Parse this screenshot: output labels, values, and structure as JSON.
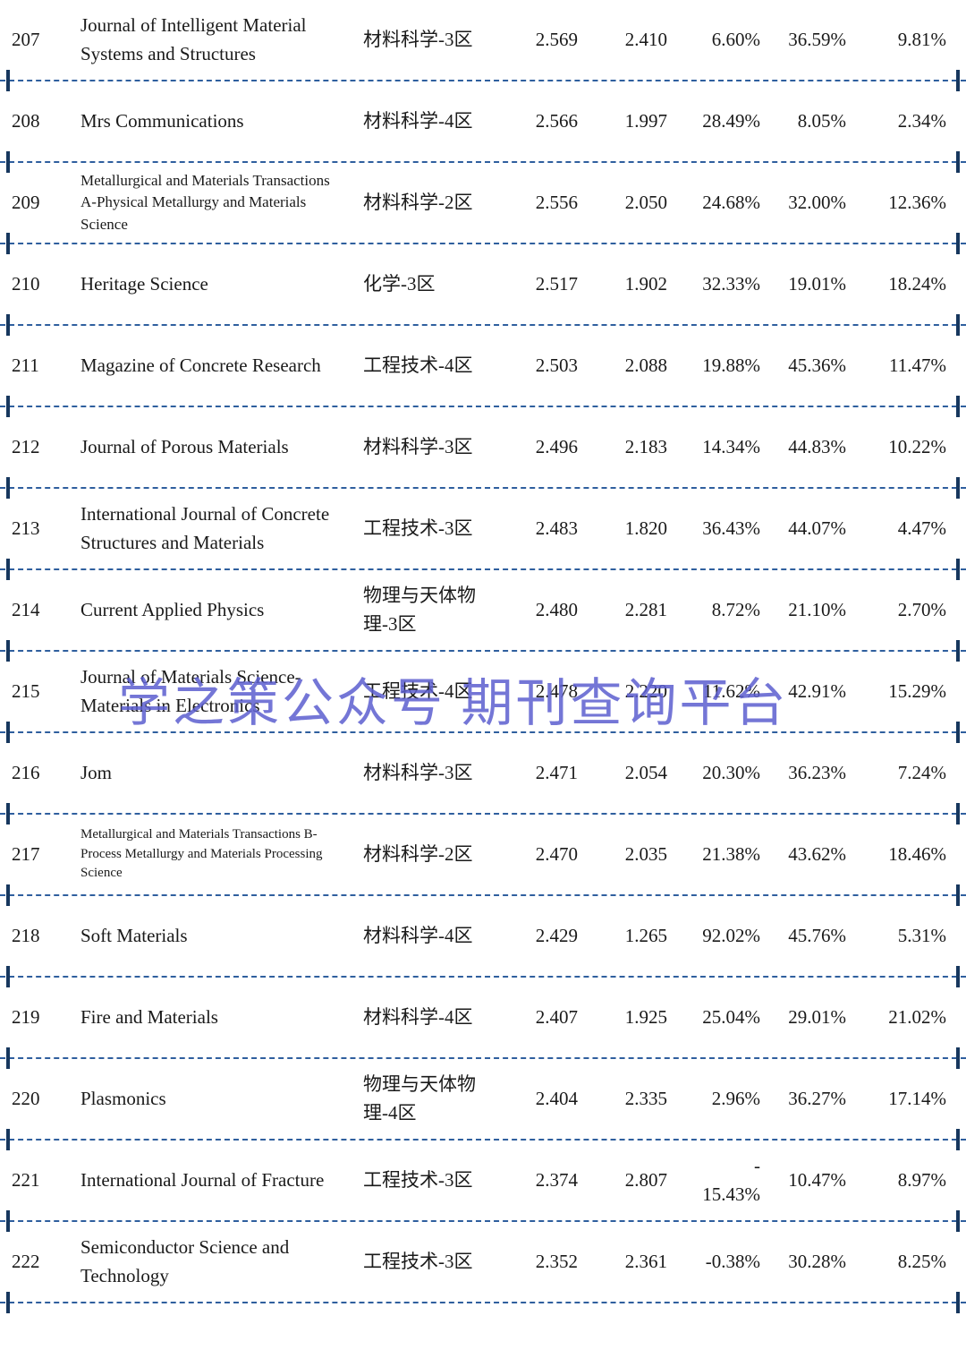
{
  "watermark": "学之策公众号 期刊查询平台",
  "colors": {
    "divider": "#2f5f9e",
    "edge_tick": "#17375e",
    "watermark": "#5c5fd0"
  },
  "table": {
    "rows": [
      {
        "rank": "207",
        "name": "Journal of Intelligent Material Systems and Structures",
        "category": "材料科学-3区",
        "v1": "2.569",
        "v2": "2.410",
        "v3": "6.60%",
        "v4": "36.59%",
        "v5": "9.81%"
      },
      {
        "rank": "208",
        "name": "Mrs Communications",
        "category": "材料科学-4区",
        "v1": "2.566",
        "v2": "1.997",
        "v3": "28.49%",
        "v4": "8.05%",
        "v5": "2.34%"
      },
      {
        "rank": "209",
        "name": "Metallurgical and Materials Transactions A-Physical Metallurgy and Materials Science",
        "category": "材料科学-2区",
        "v1": "2.556",
        "v2": "2.050",
        "v3": "24.68%",
        "v4": "32.00%",
        "v5": "12.36%"
      },
      {
        "rank": "210",
        "name": "Heritage Science",
        "category": "化学-3区",
        "v1": "2.517",
        "v2": "1.902",
        "v3": "32.33%",
        "v4": "19.01%",
        "v5": "18.24%"
      },
      {
        "rank": "211",
        "name": "Magazine of Concrete Research",
        "category": "工程技术-4区",
        "v1": "2.503",
        "v2": "2.088",
        "v3": "19.88%",
        "v4": "45.36%",
        "v5": "11.47%"
      },
      {
        "rank": "212",
        "name": "Journal of Porous Materials",
        "category": "材料科学-3区",
        "v1": "2.496",
        "v2": "2.183",
        "v3": "14.34%",
        "v4": "44.83%",
        "v5": "10.22%"
      },
      {
        "rank": "213",
        "name": "International Journal of Concrete Structures and Materials",
        "category": "工程技术-3区",
        "v1": "2.483",
        "v2": "1.820",
        "v3": "36.43%",
        "v4": "44.07%",
        "v5": "4.47%"
      },
      {
        "rank": "214",
        "name": "Current Applied Physics",
        "category": "物理与天体物理-3区",
        "v1": "2.480",
        "v2": "2.281",
        "v3": "8.72%",
        "v4": "21.10%",
        "v5": "2.70%"
      },
      {
        "rank": "215",
        "name": "Journal of Materials Science-Materials in Electronics",
        "category": "工程技术-4区",
        "v1": "2.478",
        "v2": "2.220",
        "v3": "11.62%",
        "v4": "42.91%",
        "v5": "15.29%"
      },
      {
        "rank": "216",
        "name": "Jom",
        "category": "材料科学-3区",
        "v1": "2.471",
        "v2": "2.054",
        "v3": "20.30%",
        "v4": "36.23%",
        "v5": "7.24%"
      },
      {
        "rank": "217",
        "name": "Metallurgical and Materials Transactions B-Process Metallurgy and Materials Processing Science",
        "category": "材料科学-2区",
        "v1": "2.470",
        "v2": "2.035",
        "v3": "21.38%",
        "v4": "43.62%",
        "v5": "18.46%"
      },
      {
        "rank": "218",
        "name": "Soft Materials",
        "category": "材料科学-4区",
        "v1": "2.429",
        "v2": "1.265",
        "v3": "92.02%",
        "v4": "45.76%",
        "v5": "5.31%"
      },
      {
        "rank": "219",
        "name": "Fire and Materials",
        "category": "材料科学-4区",
        "v1": "2.407",
        "v2": "1.925",
        "v3": "25.04%",
        "v4": "29.01%",
        "v5": "21.02%"
      },
      {
        "rank": "220",
        "name": "Plasmonics",
        "category": "物理与天体物理-4区",
        "v1": "2.404",
        "v2": "2.335",
        "v3": "2.96%",
        "v4": "36.27%",
        "v5": "17.14%"
      },
      {
        "rank": "221",
        "name": "International Journal of Fracture",
        "category": "工程技术-3区",
        "v1": "2.374",
        "v2": "2.807",
        "v3": "-\n15.43%",
        "v4": "10.47%",
        "v5": "8.97%"
      },
      {
        "rank": "222",
        "name": "Semiconductor Science and Technology",
        "category": "工程技术-3区",
        "v1": "2.352",
        "v2": "2.361",
        "v3": "-0.38%",
        "v4": "30.28%",
        "v5": "8.25%"
      }
    ]
  }
}
